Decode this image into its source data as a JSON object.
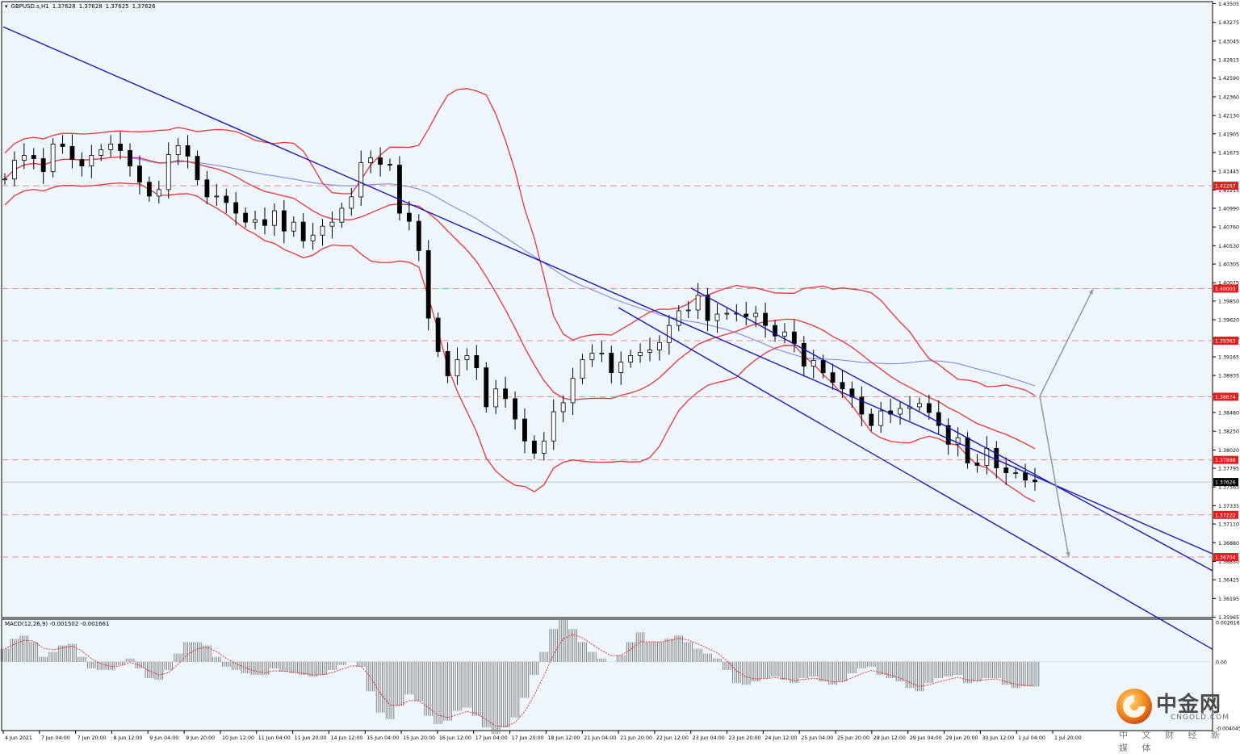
{
  "header": {
    "symbol": "GBPUSD.s,H1",
    "open": "1.37628",
    "high": "1.37628",
    "low": "1.37625",
    "close": "1.37626"
  },
  "macd_header": "MACD(12,26,9) -0.001502 -0.001661",
  "watermark": {
    "cn": "中金网",
    "en": "CNGOLD.COM",
    "sub": "中 文 财 经 新 媒 体"
  },
  "colors": {
    "background": "#ffffff",
    "plot_bg": "#eef6fb",
    "trendline": "#1919b8",
    "bollinger": "#e8343a",
    "ma": "#7e7ee0",
    "level": "#ec8c8c",
    "candle": "#000000",
    "arrow": "#9a9a9a",
    "macd_hist": "#808080",
    "macd_signal": "#e02020"
  },
  "chart_data": [
    {
      "type": "candlestick",
      "title": "GBPUSD.s,H1",
      "ylim": [
        1.3596,
        1.4353
      ],
      "y_ticks": [
        "1.43505",
        "1.43275",
        "1.43045",
        "1.42815",
        "1.42590",
        "1.42360",
        "1.42130",
        "1.41905",
        "1.41675",
        "1.41445",
        "1.41215",
        "1.40990",
        "1.40760",
        "1.40530",
        "1.40305",
        "1.40075",
        "1.39850",
        "1.39620",
        "1.39390",
        "1.39165",
        "1.38935",
        "1.38705",
        "1.38480",
        "1.38250",
        "1.38020",
        "1.37795",
        "1.37565",
        "1.37335",
        "1.37110",
        "1.36880",
        "1.36650",
        "1.36425",
        "1.36195",
        "1.35965"
      ],
      "x_ticks": [
        "4 Jun 2021",
        "7 Jun 04:00",
        "7 Jun 20:00",
        "8 Jun 12:00",
        "9 Jun 04:00",
        "9 Jun 20:00",
        "10 Jun 12:00",
        "11 Jun 04:00",
        "11 Jun 20:00",
        "14 Jun 12:00",
        "15 Jun 04:00",
        "15 Jun 20:00",
        "16 Jun 12:00",
        "17 Jun 04:00",
        "17 Jun 20:00",
        "18 Jun 12:00",
        "21 Jun 04:00",
        "21 Jun 20:00",
        "22 Jun 12:00",
        "23 Jun 04:00",
        "23 Jun 20:00",
        "24 Jun 12:00",
        "25 Jun 04:00",
        "25 Jun 20:00",
        "28 Jun 12:00",
        "29 Jun 04:00",
        "29 Jun 20:00",
        "30 Jun 12:00",
        "1 Jul 04:00",
        "1 Jul 20:00"
      ],
      "price_levels": [
        {
          "value": 1.41267,
          "label": "1.41267"
        },
        {
          "value": 1.40003,
          "label": "1.40003"
        },
        {
          "value": 1.39363,
          "label": "1.39363"
        },
        {
          "value": 1.38674,
          "label": "1.38674"
        },
        {
          "value": 1.37898,
          "label": "1.37898"
        },
        {
          "value": 1.37222,
          "label": "1.37222"
        },
        {
          "value": 1.36704,
          "label": "1.36704"
        }
      ],
      "current_price": {
        "value": 1.37626,
        "label": "1.37626"
      },
      "trendlines": [
        {
          "name": "long-downtrend",
          "points": [
            [
              "4 Jun 2021",
              1.4322
            ],
            [
              "1 Jul 20:00",
              1.376
            ]
          ]
        },
        {
          "name": "channel-upper",
          "points": [
            [
              "23 Jun 04:00",
              1.4001
            ],
            [
              "1 Jul 20:00",
              1.376
            ]
          ]
        },
        {
          "name": "channel-lower",
          "points": [
            [
              "21 Jun 20:00",
              1.3977
            ],
            [
              "1 Jul 20:00",
              1.367
            ]
          ]
        }
      ],
      "scenario_arrows": [
        {
          "name": "bullish",
          "from": 1.3868,
          "to": 1.4
        },
        {
          "name": "bearish",
          "from": 1.3868,
          "to": 1.367
        }
      ],
      "series": [
        {
          "name": "Close",
          "values": [
            1.4135,
            1.4158,
            1.4164,
            1.416,
            1.4144,
            1.4178,
            1.4175,
            1.4159,
            1.4151,
            1.4164,
            1.4171,
            1.4178,
            1.417,
            1.4151,
            1.4131,
            1.4114,
            1.4122,
            1.4165,
            1.4176,
            1.4163,
            1.4134,
            1.4113,
            1.4114,
            1.4106,
            1.4093,
            1.4082,
            1.4085,
            1.4078,
            1.4096,
            1.4071,
            1.4082,
            1.4059,
            1.4066,
            1.4077,
            1.4082,
            1.4099,
            1.4113,
            1.4155,
            1.4161,
            1.4153,
            1.4152,
            1.4093,
            1.4083,
            1.4047,
            1.3964,
            1.3923,
            1.3893,
            1.3913,
            1.3918,
            1.3903,
            1.3855,
            1.3877,
            1.3865,
            1.384,
            1.3813,
            1.3798,
            1.3813,
            1.3849,
            1.386,
            1.389,
            1.3913,
            1.3921,
            1.3921,
            1.3897,
            1.391,
            1.3918,
            1.3922,
            1.3925,
            1.3934,
            1.3955,
            1.3973,
            1.3974,
            1.3992,
            1.3961,
            1.3969,
            1.397,
            1.3969,
            1.3966,
            1.397,
            1.3955,
            1.3942,
            1.3947,
            1.3933,
            1.3905,
            1.3912,
            1.3897,
            1.3885,
            1.3877,
            1.3867,
            1.3846,
            1.3832,
            1.385,
            1.3846,
            1.3853,
            1.3855,
            1.3859,
            1.3848,
            1.3832,
            1.3809,
            1.3817,
            1.3786,
            1.3783,
            1.3804,
            1.378,
            1.3774,
            1.3774,
            1.3765,
            1.3763
          ]
        },
        {
          "name": "MACD",
          "values": [
            0.0008,
            0.0014,
            0.0016,
            0.0012,
            0.0003,
            0.0006,
            0.001,
            0.0011,
            0.0003,
            -0.0004,
            -0.0005,
            -0.0005,
            -0.0002,
            0.0002,
            -0.0004,
            -0.001,
            -0.0011,
            -0.0005,
            0.0005,
            0.0012,
            0.0012,
            0.001,
            0.0003,
            -0.0003,
            -0.0005,
            -0.0007,
            -0.0008,
            -0.0008,
            -0.0004,
            -0.0006,
            -0.0007,
            -0.0008,
            -0.0009,
            -0.0008,
            -0.0005,
            -0.0002,
            0.0,
            -0.0003,
            -0.0018,
            -0.0031,
            -0.0035,
            -0.0027,
            -0.002,
            -0.0024,
            -0.0033,
            -0.0038,
            -0.0036,
            -0.003,
            -0.0028,
            -0.0033,
            -0.004,
            -0.0044,
            -0.004,
            -0.0034,
            -0.0022,
            -0.0008,
            0.0006,
            0.002,
            0.0026,
            0.002,
            0.0012,
            0.0006,
            0.0002,
            0.0,
            0.0004,
            0.0012,
            0.0018,
            0.0012,
            0.0012,
            0.0014,
            0.0016,
            0.0012,
            0.0008,
            0.0005,
            0.0002,
            -0.0005,
            -0.0013,
            -0.0014,
            -0.0012,
            -0.001,
            -0.0009,
            -0.0011,
            -0.0013,
            -0.001,
            -0.0009,
            -0.0012,
            -0.0014,
            -0.0012,
            -0.0007,
            -0.0004,
            -0.0003,
            -0.0008,
            -0.001,
            -0.0012,
            -0.0016,
            -0.0018,
            -0.0013,
            -0.001,
            -0.0009,
            -0.0008,
            -0.0013,
            -0.0012,
            -0.001,
            -0.001,
            -0.0014,
            -0.0016,
            -0.0015,
            -0.0015
          ]
        }
      ]
    },
    {
      "type": "bar",
      "title": "MACD(12,26,9) -0.001502 -0.001661",
      "ylim": [
        -0.0042,
        0.0026
      ],
      "y_ticks": [
        "0.002616",
        "0.00",
        "-0.004045"
      ]
    }
  ]
}
